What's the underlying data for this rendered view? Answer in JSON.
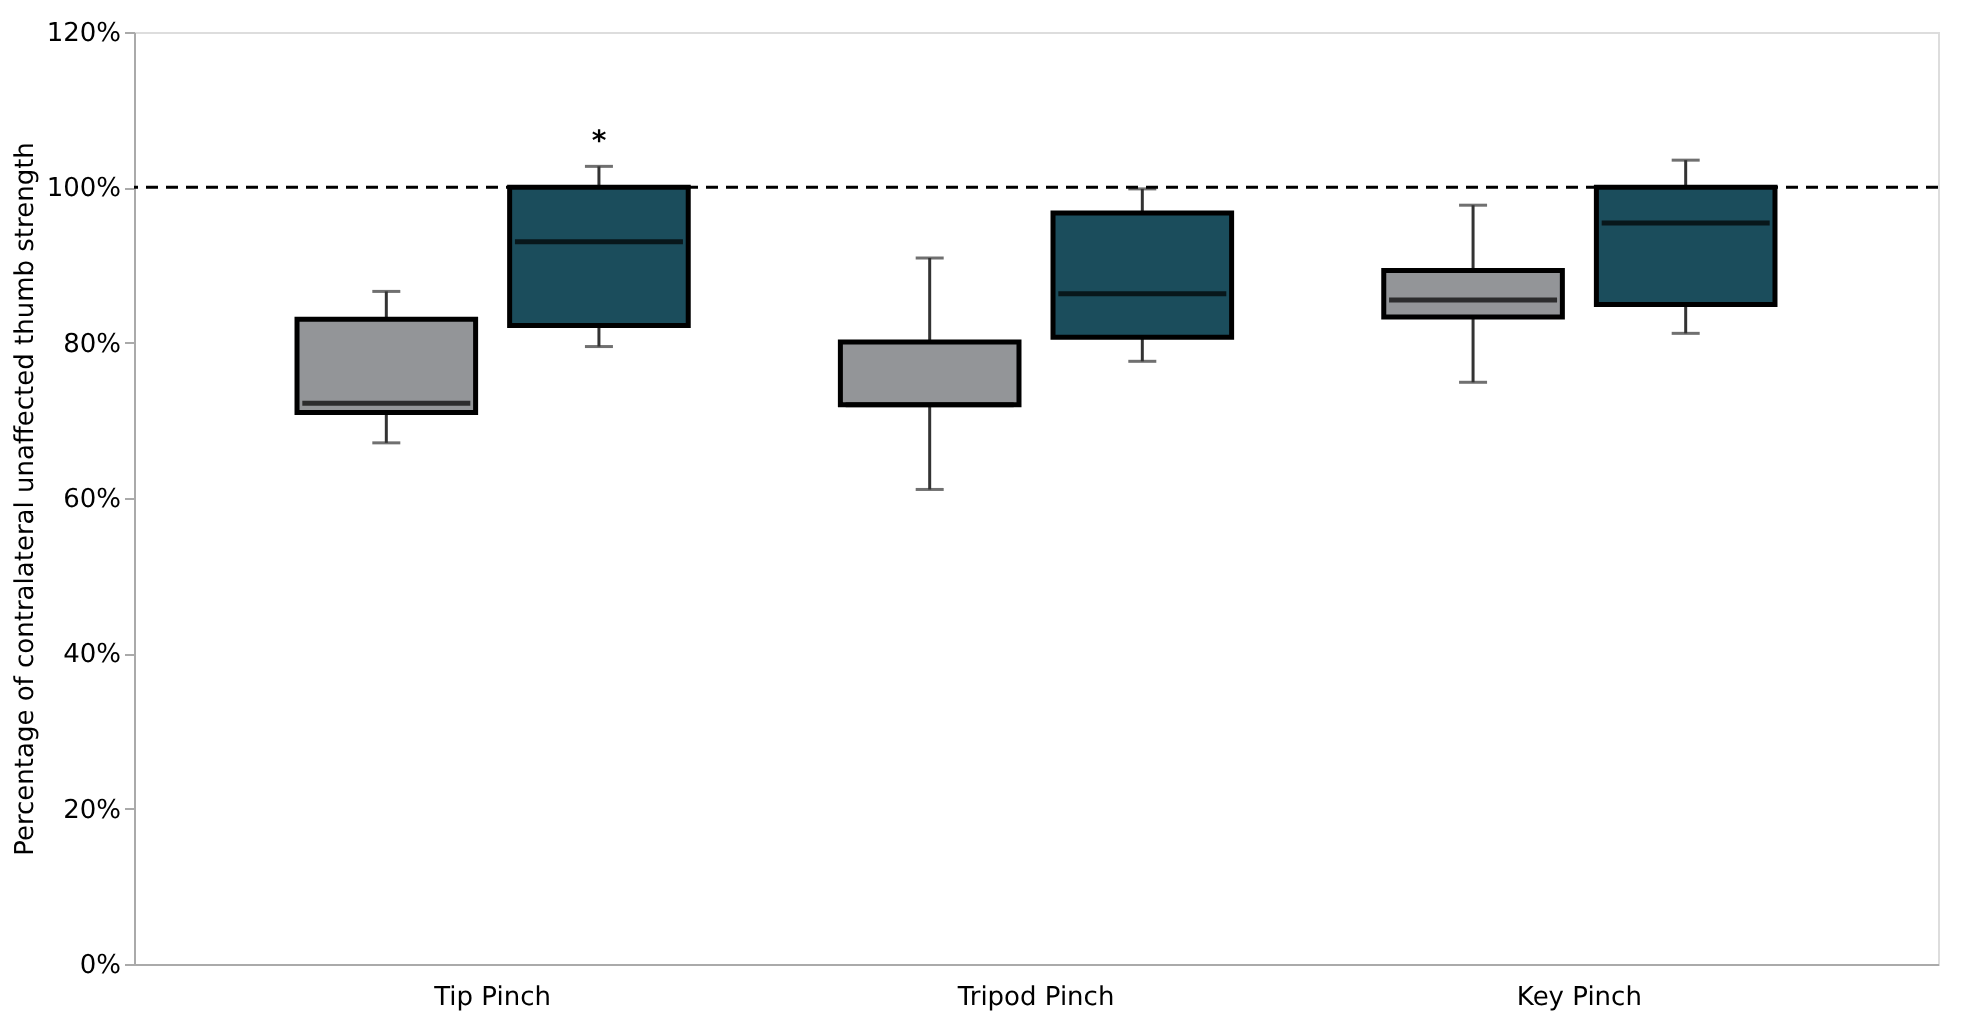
{
  "chart_data": {
    "type": "box",
    "ylabel": "Percentage of contralateral unaffected thumb strength",
    "categories": [
      "Tip Pinch",
      "Tripod Pinch",
      "Key Pinch"
    ],
    "series": [
      {
        "color": "#939598",
        "boxes": [
          {
            "low": 67.1,
            "q1": 71.0,
            "median": 72.2,
            "q3": 83.0,
            "high": 86.6
          },
          {
            "low": 61.1,
            "q1": 72.0,
            "median": 72.0,
            "q3": 80.1,
            "high": 90.9
          },
          {
            "low": 74.9,
            "q1": 83.3,
            "median": 85.5,
            "q3": 89.3,
            "high": 97.7
          }
        ]
      },
      {
        "color": "#1b4d5c",
        "boxes": [
          {
            "low": 79.5,
            "q1": 82.2,
            "median": 93.0,
            "q3": 100.0,
            "high": 102.7
          },
          {
            "low": 77.6,
            "q1": 80.7,
            "median": 86.3,
            "q3": 96.7,
            "high": 99.8
          },
          {
            "low": 81.2,
            "q1": 84.9,
            "median": 95.4,
            "q3": 100.0,
            "high": 103.5
          }
        ]
      }
    ],
    "ylim": [
      0,
      120
    ],
    "yticks": [
      {
        "value": 0,
        "label": "0%"
      },
      {
        "value": 20,
        "label": "20%"
      },
      {
        "value": 40,
        "label": "40%"
      },
      {
        "value": 60,
        "label": "60%"
      },
      {
        "value": 80,
        "label": "80%"
      },
      {
        "value": 100,
        "label": "100%"
      },
      {
        "value": 120,
        "label": "120%"
      }
    ],
    "ref_lines": [
      {
        "axis": "y",
        "value": 100,
        "color": "#000000",
        "line_style": "dashed"
      }
    ],
    "annotations": [
      "*"
    ],
    "grid": false,
    "legend": false
  }
}
